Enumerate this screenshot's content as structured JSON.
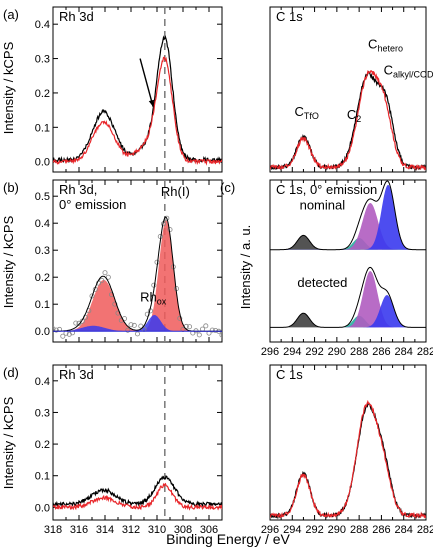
{
  "figure": {
    "xlabel": "Binding Energy / eV",
    "ylabel_kcps": "Intensity / kCPS",
    "ylabel_au": "Intensity / a. u."
  },
  "colors": {
    "black": "#000000",
    "red": "#e8262a",
    "red_fill": "#f05a5a",
    "purple": "#9b3fa6",
    "purple_fill": "#b05cc0",
    "blue": "#2a2ad6",
    "blue_fill": "#3a3aee",
    "teal": "#1a9a8a",
    "teal_fill": "#26b0a0",
    "gray_fill": "#404040",
    "dashed": "#808080"
  },
  "chart_data": [
    {
      "id": "a_rh",
      "type": "line",
      "panel_letter": "(a)",
      "panel_title": "Rh 3d",
      "xlim": [
        318,
        305
      ],
      "ylim": [
        -0.03,
        0.45
      ],
      "xticks": [
        318,
        316,
        314,
        312,
        310,
        308,
        306
      ],
      "yticks": [
        0.0,
        0.1,
        0.2,
        0.3,
        0.4
      ],
      "yticklabels": [
        "0.0",
        "0.1",
        "0.2",
        "0.3",
        "0.4"
      ],
      "dashed_x": 309.4,
      "series": [
        {
          "color": "black",
          "peaks": [
            [
              314.1,
              0.14,
              0.85
            ],
            [
              309.4,
              0.34,
              0.6
            ],
            [
              310.6,
              0.04,
              0.9
            ]
          ],
          "base": 0.005
        },
        {
          "color": "red",
          "peaks": [
            [
              314.1,
              0.115,
              0.85
            ],
            [
              309.4,
              0.28,
              0.6
            ],
            [
              310.6,
              0.05,
              0.9
            ]
          ],
          "base": 0.0
        }
      ],
      "arrow": {
        "from": [
          311.3,
          0.3
        ],
        "to": [
          310.3,
          0.16
        ]
      }
    },
    {
      "id": "a_c",
      "type": "line",
      "panel_title": "C 1s",
      "xlim": [
        296,
        282
      ],
      "ylim": [
        -0.03,
        1.0
      ],
      "xticks": [
        296,
        294,
        292,
        290,
        288,
        286,
        284,
        282
      ],
      "series": [
        {
          "color": "black",
          "peaks": [
            [
              293.0,
              0.19,
              0.6
            ],
            [
              287.3,
              0.56,
              0.9
            ],
            [
              285.6,
              0.36,
              0.7
            ]
          ],
          "base": 0.0
        },
        {
          "color": "red",
          "peaks": [
            [
              293.0,
              0.18,
              0.6
            ],
            [
              287.2,
              0.56,
              0.9
            ],
            [
              285.7,
              0.3,
              0.7
            ]
          ],
          "base": 0.0
        }
      ],
      "annotations": [
        {
          "text": "C",
          "sub": "TfO",
          "color": "black",
          "x": 293.8,
          "y": 0.32
        },
        {
          "text": "C",
          "sub": "2",
          "color": "teal",
          "x": 289.1,
          "y": 0.3
        },
        {
          "text": "C",
          "sub": "hetero",
          "color": "purple",
          "x": 287.2,
          "y": 0.74
        },
        {
          "text": "C",
          "sub": "alkyl/COD.",
          "color": "blue",
          "x": 285.8,
          "y": 0.58
        }
      ]
    },
    {
      "id": "b_rh",
      "type": "line",
      "panel_letter": "(b)",
      "panel_title": "Rh 3d,",
      "panel_title2": "0° emission",
      "xlim": [
        318,
        305
      ],
      "ylim": [
        -0.04,
        0.56
      ],
      "xticks": [
        318,
        316,
        314,
        312,
        310,
        308,
        306
      ],
      "yticks": [
        0.0,
        0.1,
        0.2,
        0.3,
        0.4,
        0.5
      ],
      "yticklabels": [
        "0.0",
        "0.1",
        "0.2",
        "0.3",
        "0.4",
        "0.5"
      ],
      "dashed_x": 309.4,
      "components": [
        {
          "fill": "red_fill",
          "peaks": [
            [
              314.1,
              0.19,
              0.85
            ],
            [
              309.3,
              0.41,
              0.55
            ]
          ]
        },
        {
          "fill": "blue_fill",
          "peaks": [
            [
              314.9,
              0.02,
              0.9
            ],
            [
              310.2,
              0.06,
              0.5
            ]
          ]
        }
      ],
      "envelope": {
        "color": "black",
        "peaks": [
          [
            314.1,
            0.19,
            0.85
          ],
          [
            309.3,
            0.41,
            0.55
          ],
          [
            314.9,
            0.02,
            0.9
          ],
          [
            310.2,
            0.06,
            0.5
          ]
        ]
      },
      "circles_every": 0.25,
      "annotations": [
        {
          "text": "Rh(I)",
          "color": "red",
          "x": 309.7,
          "y": 0.5
        },
        {
          "text": "Rh",
          "sub": "ox",
          "color": "blue",
          "x": 311.3,
          "y": 0.11
        }
      ]
    },
    {
      "id": "c_c",
      "type": "area",
      "panel_letter": "(c)",
      "panel_title": "C 1s, 0° emission",
      "xlim": [
        296,
        282
      ],
      "ylim": [
        0,
        1
      ],
      "xticks": [
        296,
        294,
        292,
        290,
        288,
        286,
        284,
        282
      ],
      "xticklabels": [
        "296",
        "294",
        "292",
        "290",
        "288",
        "286",
        "284",
        "282"
      ],
      "stacks": [
        {
          "label": "nominal",
          "label_x": 291.3,
          "base_frac": 0.57,
          "height_frac": 0.4,
          "peaks": [
            [
              293.0,
              0.22,
              0.55,
              "gray_fill"
            ],
            [
              288.0,
              0.18,
              0.55,
              "teal_fill"
            ],
            [
              287.0,
              0.72,
              0.7,
              "purple_fill"
            ],
            [
              285.4,
              1.0,
              0.6,
              "blue_fill"
            ]
          ]
        },
        {
          "label": "detected",
          "label_x": 291.3,
          "base_frac": 0.09,
          "height_frac": 0.4,
          "peaks": [
            [
              293.0,
              0.22,
              0.55,
              "gray_fill"
            ],
            [
              288.0,
              0.18,
              0.55,
              "teal_fill"
            ],
            [
              287.0,
              0.87,
              0.65,
              "purple_fill"
            ],
            [
              285.5,
              0.5,
              0.6,
              "blue_fill"
            ]
          ]
        }
      ]
    },
    {
      "id": "d_rh",
      "type": "line",
      "panel_letter": "(d)",
      "panel_title": "Rh 3d",
      "xlim": [
        318,
        305
      ],
      "ylim": [
        -0.04,
        0.45
      ],
      "xticks": [
        318,
        316,
        314,
        312,
        310,
        308,
        306
      ],
      "xticklabels": [
        "318",
        "316",
        "314",
        "312",
        "310",
        "308",
        "306"
      ],
      "yticks": [
        0.0,
        0.1,
        0.2,
        0.3,
        0.4
      ],
      "yticklabels": [
        "0.0",
        "0.1",
        "0.2",
        "0.3",
        "0.4"
      ],
      "dashed_x": 309.4,
      "series": [
        {
          "color": "black",
          "peaks": [
            [
              314.1,
              0.045,
              0.9
            ],
            [
              309.4,
              0.085,
              0.75
            ]
          ],
          "base": 0.01
        },
        {
          "color": "red",
          "peaks": [
            [
              314.1,
              0.03,
              0.9
            ],
            [
              309.4,
              0.07,
              0.6
            ]
          ],
          "base": 0.0
        }
      ]
    },
    {
      "id": "d_c",
      "type": "line",
      "panel_title": "C 1s",
      "xlim": [
        296,
        282
      ],
      "ylim": [
        -0.03,
        1.0
      ],
      "xticks": [
        296,
        294,
        292,
        290,
        288,
        286,
        284,
        282
      ],
      "xticklabels": [
        "296",
        "294",
        "292",
        "290",
        "288",
        "286",
        "284",
        "282"
      ],
      "series": [
        {
          "color": "black",
          "peaks": [
            [
              293.0,
              0.28,
              0.6
            ],
            [
              287.3,
              0.7,
              0.9
            ],
            [
              285.8,
              0.28,
              0.7
            ]
          ],
          "base": 0.0
        },
        {
          "color": "red",
          "peaks": [
            [
              293.0,
              0.27,
              0.6
            ],
            [
              287.3,
              0.72,
              0.9
            ],
            [
              285.8,
              0.25,
              0.7
            ]
          ],
          "base": 0.0
        }
      ]
    }
  ]
}
